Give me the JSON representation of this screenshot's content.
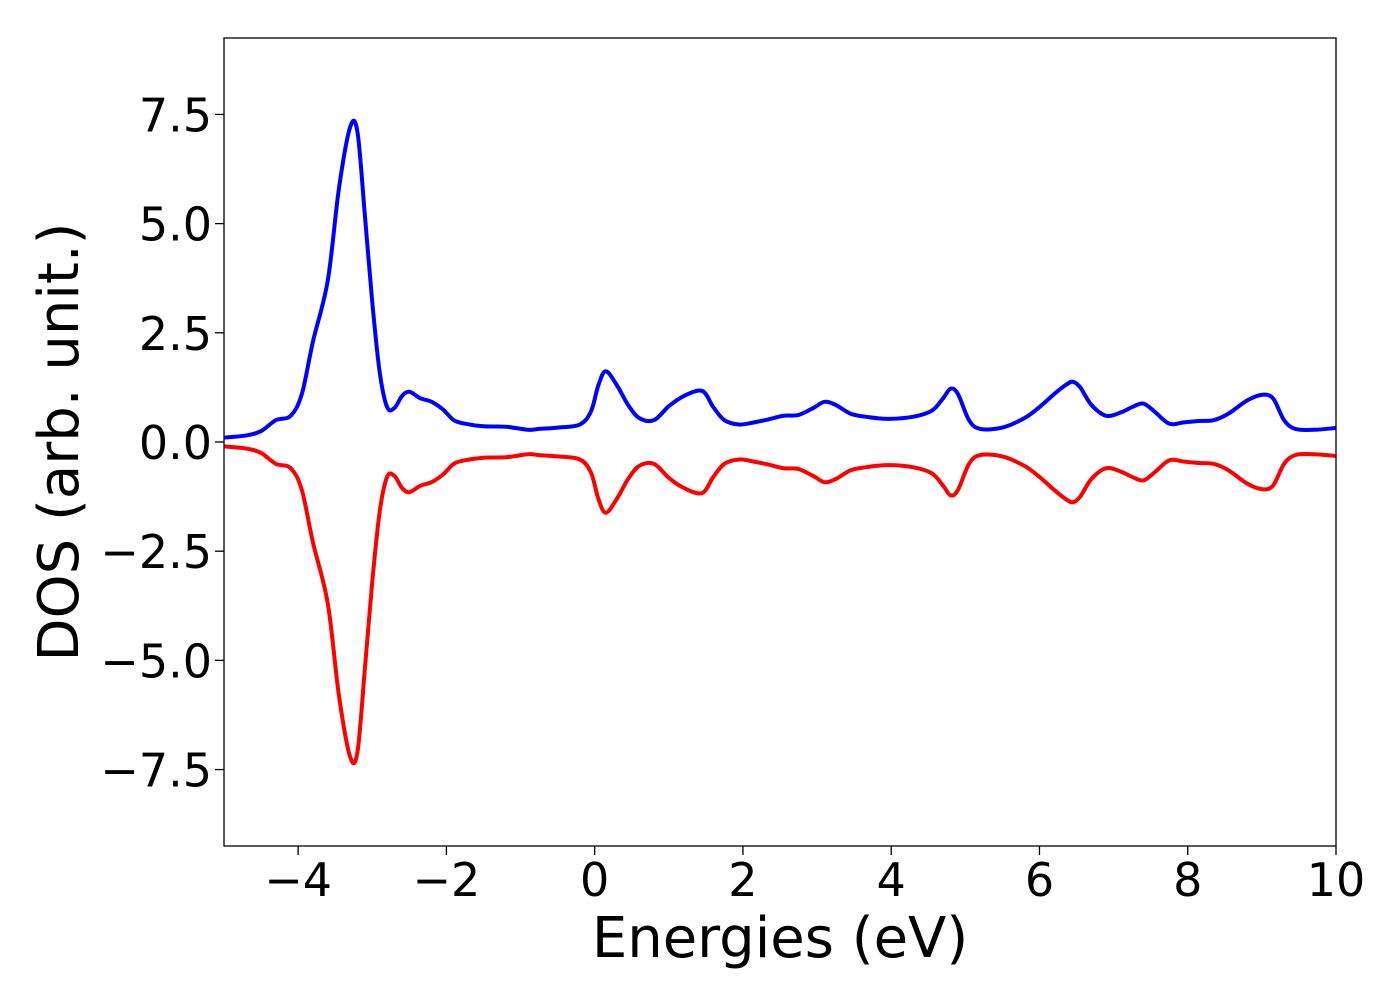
{
  "chart_data": {
    "type": "line",
    "title": "",
    "xlabel": "Energies (eV)",
    "ylabel": "DOS (arb. unit.)",
    "xlim": [
      -5,
      10
    ],
    "ylim": [
      -9.25,
      9.25
    ],
    "xticks": [
      -4,
      -2,
      0,
      2,
      4,
      6,
      8,
      10
    ],
    "xtick_labels": [
      "−4",
      "−2",
      "0",
      "2",
      "4",
      "6",
      "8",
      "10"
    ],
    "yticks": [
      7.5,
      5.0,
      2.5,
      0.0,
      -2.5,
      -5.0,
      -7.5
    ],
    "ytick_labels": [
      "7.5",
      "5.0",
      "2.5",
      "0.0",
      "−2.5",
      "−5.0",
      "−7.5"
    ],
    "grid": false,
    "legend": "none",
    "series": [
      {
        "color": "#0000ff",
        "x": [
          -5.0,
          -4.7,
          -4.5,
          -4.3,
          -4.1,
          -3.95,
          -3.8,
          -3.6,
          -3.45,
          -3.3,
          -3.2,
          -3.1,
          -3.0,
          -2.9,
          -2.8,
          -2.7,
          -2.6,
          -2.5,
          -2.35,
          -2.2,
          -2.05,
          -1.9,
          -1.75,
          -1.5,
          -1.2,
          -0.9,
          -0.75,
          -0.5,
          -0.2,
          -0.05,
          0.05,
          0.15,
          0.3,
          0.45,
          0.6,
          0.8,
          1.0,
          1.2,
          1.45,
          1.6,
          1.75,
          1.95,
          2.15,
          2.35,
          2.55,
          2.75,
          2.95,
          3.1,
          3.25,
          3.45,
          3.65,
          3.95,
          4.3,
          4.55,
          4.7,
          4.8,
          4.9,
          5.05,
          5.2,
          5.5,
          5.8,
          6.0,
          6.2,
          6.35,
          6.45,
          6.55,
          6.7,
          6.9,
          7.1,
          7.25,
          7.4,
          7.55,
          7.75,
          7.95,
          8.15,
          8.35,
          8.55,
          8.8,
          9.0,
          9.15,
          9.3,
          9.45,
          9.7,
          10.0
        ],
        "y": [
          0.1,
          0.15,
          0.25,
          0.5,
          0.6,
          1.1,
          2.3,
          3.7,
          5.8,
          7.2,
          7.1,
          5.2,
          3.2,
          1.6,
          0.8,
          0.78,
          1.05,
          1.15,
          1.0,
          0.92,
          0.75,
          0.5,
          0.42,
          0.36,
          0.35,
          0.28,
          0.3,
          0.33,
          0.4,
          0.7,
          1.3,
          1.62,
          1.3,
          0.85,
          0.55,
          0.5,
          0.82,
          1.05,
          1.17,
          0.8,
          0.5,
          0.4,
          0.45,
          0.52,
          0.6,
          0.62,
          0.78,
          0.92,
          0.85,
          0.65,
          0.58,
          0.53,
          0.58,
          0.72,
          1.0,
          1.22,
          1.1,
          0.5,
          0.3,
          0.33,
          0.55,
          0.8,
          1.1,
          1.3,
          1.38,
          1.25,
          0.85,
          0.6,
          0.68,
          0.8,
          0.88,
          0.7,
          0.42,
          0.45,
          0.48,
          0.5,
          0.65,
          0.95,
          1.08,
          1.0,
          0.5,
          0.3,
          0.28,
          0.32
        ]
      },
      {
        "color": "#ff0000",
        "x": [
          -5.0,
          -4.7,
          -4.5,
          -4.3,
          -4.1,
          -3.95,
          -3.8,
          -3.6,
          -3.45,
          -3.3,
          -3.2,
          -3.1,
          -3.0,
          -2.9,
          -2.8,
          -2.7,
          -2.6,
          -2.5,
          -2.35,
          -2.2,
          -2.05,
          -1.9,
          -1.75,
          -1.5,
          -1.2,
          -0.9,
          -0.75,
          -0.5,
          -0.2,
          -0.05,
          0.05,
          0.15,
          0.3,
          0.45,
          0.6,
          0.8,
          1.0,
          1.2,
          1.45,
          1.6,
          1.75,
          1.95,
          2.15,
          2.35,
          2.55,
          2.75,
          2.95,
          3.1,
          3.25,
          3.45,
          3.65,
          3.95,
          4.3,
          4.55,
          4.7,
          4.8,
          4.9,
          5.05,
          5.2,
          5.5,
          5.8,
          6.0,
          6.2,
          6.35,
          6.45,
          6.55,
          6.7,
          6.9,
          7.1,
          7.25,
          7.4,
          7.55,
          7.75,
          7.95,
          8.15,
          8.35,
          8.55,
          8.8,
          9.0,
          9.15,
          9.3,
          9.45,
          9.7,
          10.0
        ],
        "y": [
          -0.1,
          -0.15,
          -0.25,
          -0.5,
          -0.6,
          -1.1,
          -2.3,
          -3.7,
          -5.8,
          -7.2,
          -7.1,
          -5.2,
          -3.2,
          -1.6,
          -0.8,
          -0.78,
          -1.05,
          -1.15,
          -1.0,
          -0.92,
          -0.75,
          -0.5,
          -0.42,
          -0.36,
          -0.35,
          -0.28,
          -0.3,
          -0.33,
          -0.4,
          -0.7,
          -1.3,
          -1.62,
          -1.3,
          -0.85,
          -0.55,
          -0.5,
          -0.82,
          -1.05,
          -1.17,
          -0.8,
          -0.5,
          -0.4,
          -0.45,
          -0.52,
          -0.6,
          -0.62,
          -0.78,
          -0.92,
          -0.85,
          -0.65,
          -0.58,
          -0.53,
          -0.58,
          -0.72,
          -1.0,
          -1.22,
          -1.1,
          -0.5,
          -0.3,
          -0.33,
          -0.55,
          -0.8,
          -1.1,
          -1.3,
          -1.38,
          -1.25,
          -0.85,
          -0.6,
          -0.68,
          -0.8,
          -0.88,
          -0.7,
          -0.42,
          -0.45,
          -0.48,
          -0.5,
          -0.65,
          -0.95,
          -1.08,
          -1.0,
          -0.5,
          -0.3,
          -0.28,
          -0.32
        ]
      }
    ]
  }
}
